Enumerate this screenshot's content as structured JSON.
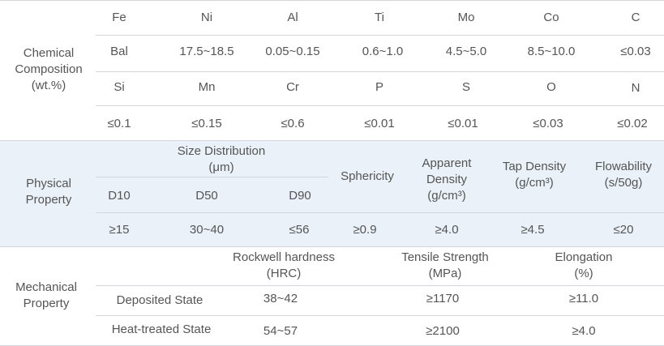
{
  "chemical": {
    "label": [
      "Chemical",
      "Composition",
      "(wt.%)"
    ],
    "row1_elements": [
      "Fe",
      "Ni",
      "Al",
      "Ti",
      "Mo",
      "Co",
      "C"
    ],
    "row1_values": [
      "Bal",
      "17.5~18.5",
      "0.05~0.15",
      "0.6~1.0",
      "4.5~5.0",
      "8.5~10.0",
      "≤0.03"
    ],
    "row2_elements": [
      "Si",
      "Mn",
      "Cr",
      "P",
      "S",
      "O",
      "N"
    ],
    "row2_values": [
      "≤0.1",
      "≤0.15",
      "≤0.6",
      "≤0.01",
      "≤0.01",
      "≤0.03",
      "≤0.02"
    ]
  },
  "physical": {
    "label": [
      "Physical",
      "Property"
    ],
    "size_distribution": [
      "Size Distribution",
      "(μm)"
    ],
    "d_labels": [
      "D10",
      "D50",
      "D90"
    ],
    "sphericity": "Sphericity",
    "apparent_density": [
      "Apparent",
      "Density",
      "(g/cm³)"
    ],
    "tap_density": [
      "Tap Density",
      "(g/cm³)"
    ],
    "flowability": [
      "Flowability",
      "(s/50g)"
    ],
    "values": [
      "≥15",
      "30~40",
      "≤56",
      "≥0.9",
      "≥4.0",
      "≥4.5",
      "≤20"
    ]
  },
  "mechanical": {
    "label": [
      "Mechanical",
      "Property"
    ],
    "headers": [
      [
        "Rockwell hardness",
        "(HRC)"
      ],
      [
        "Tensile Strength",
        "(MPa)"
      ],
      [
        "Elongation",
        "(%)"
      ]
    ],
    "rows": [
      {
        "state": "Deposited State",
        "values": [
          "38~42",
          "≥1170",
          "≥11.0"
        ]
      },
      {
        "state": "Heat-treated State",
        "values": [
          "54~57",
          "≥2100",
          "≥4.0"
        ]
      }
    ]
  }
}
